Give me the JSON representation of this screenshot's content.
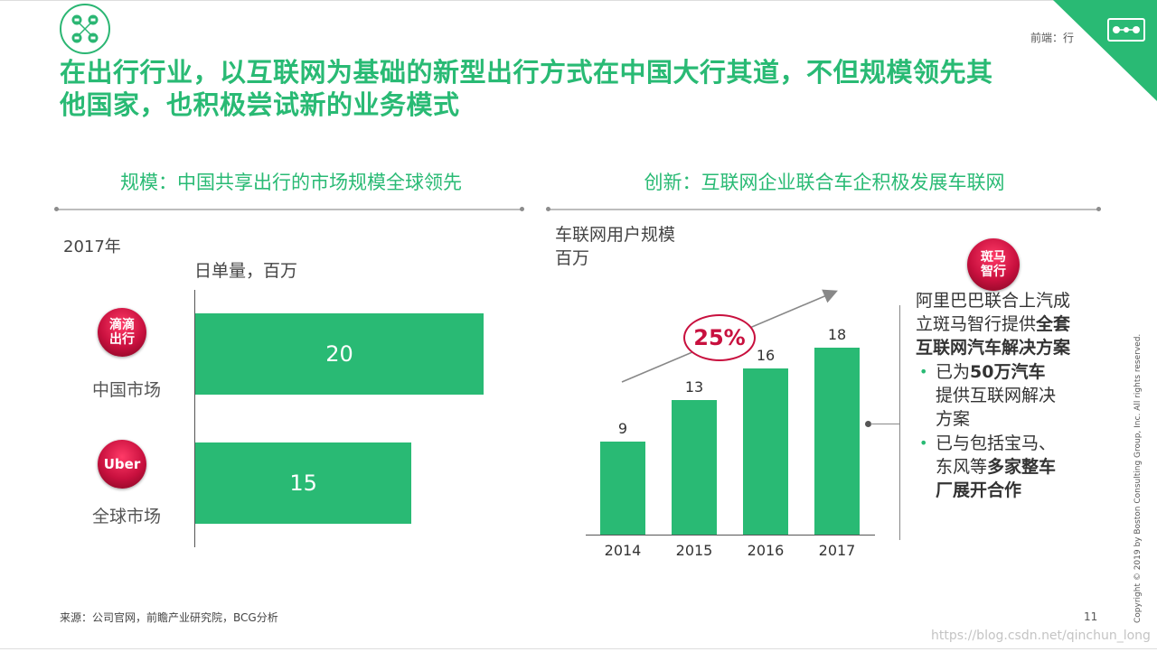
{
  "header": {
    "section_tag": "前端：行",
    "title_line1": "在出行行业，以互联网为基础的新型出行方式在中国大行其道，不但规模领先其",
    "title_line2": "他国家，也积极尝试新的业务模式"
  },
  "colors": {
    "brand_green": "#29ba74",
    "accent_red": "#c8103e"
  },
  "left": {
    "section_title": "规模：中国共享出行的市场规模全球领先",
    "year": "2017年",
    "unit": "日单量，百万",
    "chart_data": {
      "type": "bar",
      "orientation": "horizontal",
      "categories": [
        "中国市场",
        "全球市场"
      ],
      "values": [
        20,
        15
      ],
      "title": "",
      "xlabel": "",
      "ylabel": "日单量，百万",
      "xlim": [
        0,
        22
      ]
    },
    "rows": [
      {
        "badge_line1": "滴滴",
        "badge_line2": "出行",
        "market": "中国市场",
        "value": "20"
      },
      {
        "badge_line1": "Uber",
        "badge_line2": "",
        "market": "全球市场",
        "value": "15"
      }
    ]
  },
  "right": {
    "section_title": "创新：互联网企业联合车企积极发展车联网",
    "chart_title_line1": "车联网用户规模",
    "chart_title_line2": "百万",
    "cagr": "25%",
    "chart_data": {
      "type": "bar",
      "categories": [
        "2014",
        "2015",
        "2016",
        "2017"
      ],
      "values": [
        9,
        13,
        16,
        18
      ],
      "title": "",
      "xlabel": "",
      "ylabel": "百万",
      "ylim": [
        0,
        20
      ]
    },
    "badge_line1": "斑马",
    "badge_line2": "智行",
    "note": {
      "intro_plain": "阿里巴巴联合上汽成立斑马智行提供",
      "intro_bold": "全套互联网汽车解决方案",
      "bullet1_plain1": "已为",
      "bullet1_bold": "50万汽车",
      "bullet1_plain2": "提供互联网解决方案",
      "bullet2_plain": "已与包括宝马、东风等",
      "bullet2_bold": "多家整车厂展开合作"
    }
  },
  "footer": {
    "source": "来源：公司官网，前瞻产业研究院，BCG分析",
    "page_number": "11",
    "copyright": "Copyright © 2019 by Boston Consulting Group, Inc. All rights reserved.",
    "watermark": "https://blog.csdn.net/qinchun_long"
  }
}
